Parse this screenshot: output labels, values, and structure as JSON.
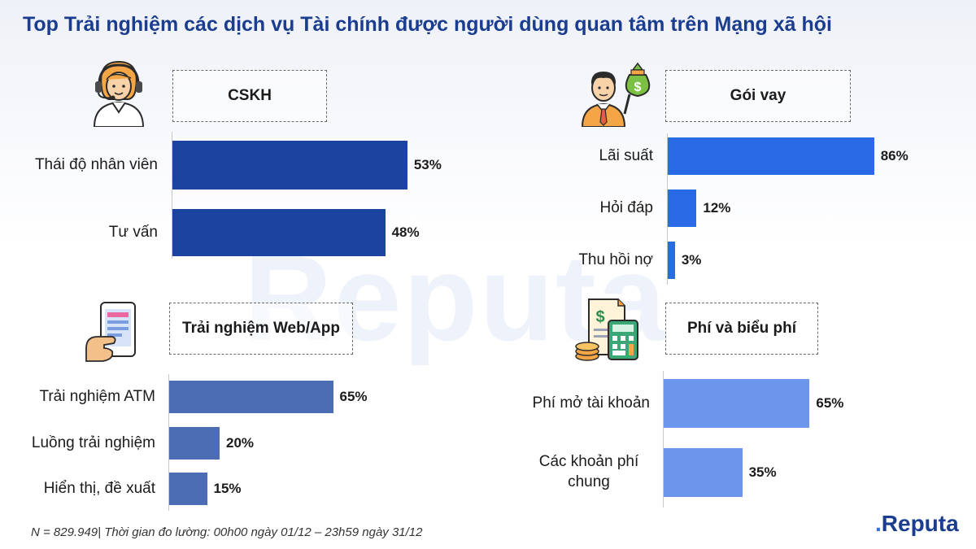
{
  "title": "Top Trải nghiệm các dịch vụ Tài chính được người dùng quan tâm trên Mạng xã hội",
  "watermark": "Reputa",
  "footnote": "N = 829.949| Thời gian đo lường: 00h00 ngày 01/12 – 23h59 ngày 31/12",
  "logo": {
    "mark": ".",
    "text": "Reputa"
  },
  "colors": {
    "cskh": "#1a44a0",
    "goi_vay": "#2a6ae6",
    "web_app": "#4c6cb4",
    "phi": "#6b96ec"
  },
  "chart_data": [
    {
      "type": "bar",
      "orientation": "horizontal",
      "title": "CSKH",
      "icon": "customer-support-agent-icon",
      "categories": [
        "Thái độ nhân viên",
        "Tư vấn"
      ],
      "values": [
        53,
        48
      ],
      "value_labels": [
        "53%",
        "48%"
      ],
      "unit": "%",
      "xlim": [
        0,
        100
      ]
    },
    {
      "type": "bar",
      "orientation": "horizontal",
      "title": "Gói vay",
      "icon": "businessman-money-bag-icon",
      "categories": [
        "Lãi suất",
        "Hỏi đáp",
        "Thu hồi nợ"
      ],
      "values": [
        86,
        12,
        3
      ],
      "value_labels": [
        "86%",
        "12%",
        "3%"
      ],
      "unit": "%",
      "xlim": [
        0,
        100
      ]
    },
    {
      "type": "bar",
      "orientation": "horizontal",
      "title": "Trải nghiệm Web/App",
      "icon": "mobile-app-hand-icon",
      "categories": [
        "Trải nghiệm ATM",
        "Luồng trải nghiệm",
        "Hiển thị, đề xuất"
      ],
      "values": [
        65,
        20,
        15
      ],
      "value_labels": [
        "65%",
        "20%",
        "15%"
      ],
      "unit": "%",
      "xlim": [
        0,
        100
      ]
    },
    {
      "type": "bar",
      "orientation": "horizontal",
      "title": "Phí và biểu phí",
      "icon": "invoice-calculator-coins-icon",
      "categories": [
        "Phí mở tài khoản",
        "Các khoản phí chung"
      ],
      "values": [
        65,
        35
      ],
      "value_labels": [
        "65%",
        "35%"
      ],
      "unit": "%",
      "xlim": [
        0,
        100
      ]
    }
  ]
}
